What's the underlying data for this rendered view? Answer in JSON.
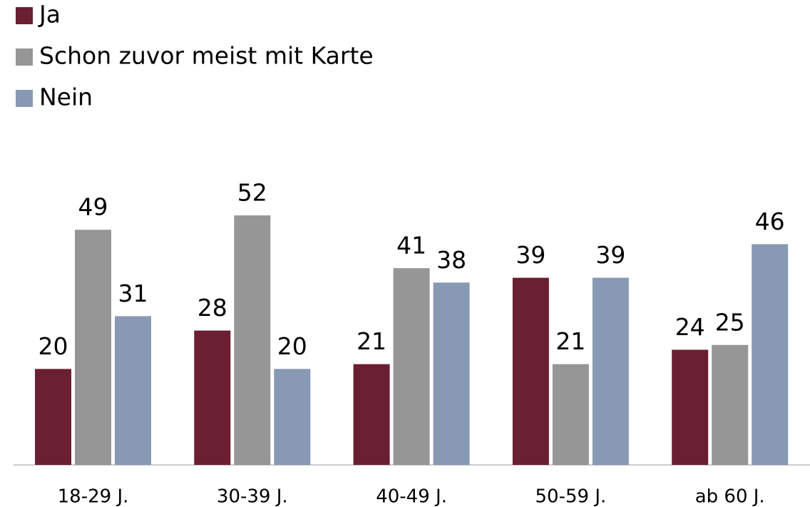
{
  "chart_data": {
    "type": "bar",
    "categories": [
      "18-29 J.",
      "30-39 J.",
      "40-49 J.",
      "50-59 J.",
      "ab 60 J."
    ],
    "series": [
      {
        "name": "Ja",
        "color": "#6b1f32",
        "values": [
          20,
          28,
          21,
          39,
          24
        ]
      },
      {
        "name": "Schon zuvor meist mit Karte",
        "color": "#969696",
        "values": [
          49,
          52,
          41,
          21,
          25
        ]
      },
      {
        "name": "Nein",
        "color": "#8899b3",
        "values": [
          31,
          20,
          38,
          39,
          46
        ]
      }
    ]
  }
}
